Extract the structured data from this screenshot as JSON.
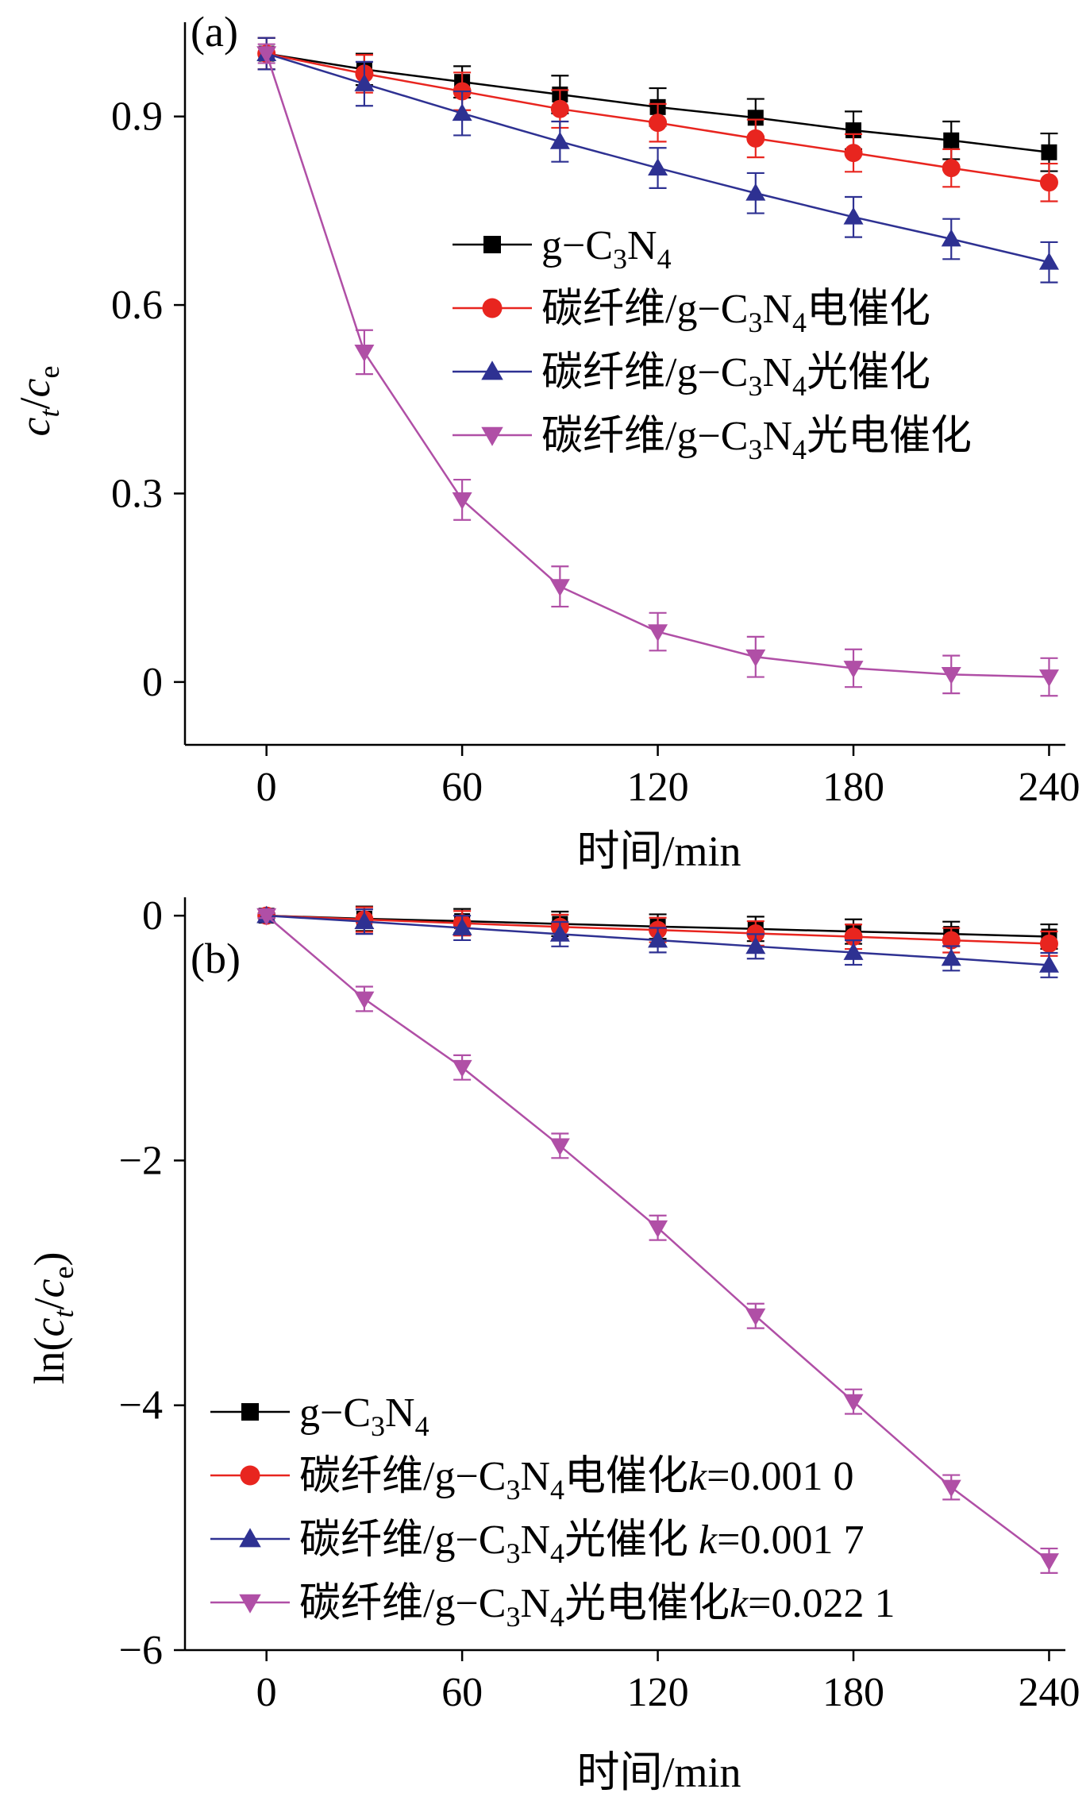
{
  "chart_data": [
    {
      "type": "line",
      "panel_label": "(a)",
      "xlabel": "时间/min",
      "ylabel": "c_t/c_e",
      "xlim": [
        -25,
        245
      ],
      "ylim": [
        -0.1,
        1.05
      ],
      "xticks": [
        0,
        60,
        120,
        180,
        240
      ],
      "xtick_labels": [
        "0",
        "60",
        "120",
        "180",
        "240"
      ],
      "yticks": [
        0,
        0.3,
        0.6,
        0.9
      ],
      "ytick_labels": [
        "0",
        "0.3",
        "0.6",
        "0.9"
      ],
      "grid": false,
      "legend_position": "center-right",
      "x": [
        0,
        30,
        60,
        90,
        120,
        150,
        180,
        210,
        240
      ],
      "series": [
        {
          "name": "g-C3N4",
          "color": "#000000",
          "marker": "square",
          "values": [
            1.0,
            0.975,
            0.955,
            0.935,
            0.915,
            0.898,
            0.878,
            0.862,
            0.843
          ],
          "errors": [
            0.025,
            0.025,
            0.025,
            0.03,
            0.03,
            0.03,
            0.03,
            0.03,
            0.03
          ]
        },
        {
          "name": "碳纤维/g-C3N4电催化",
          "color": "#e8251f",
          "marker": "circle",
          "values": [
            1.0,
            0.968,
            0.94,
            0.912,
            0.89,
            0.865,
            0.842,
            0.818,
            0.795
          ],
          "errors": [
            0.025,
            0.03,
            0.03,
            0.03,
            0.03,
            0.03,
            0.03,
            0.03,
            0.03
          ]
        },
        {
          "name": "碳纤维/g-C3N4光催化",
          "color": "#2e3192",
          "marker": "triangle-up",
          "values": [
            1.0,
            0.952,
            0.905,
            0.86,
            0.818,
            0.778,
            0.74,
            0.705,
            0.668
          ],
          "errors": [
            0.025,
            0.035,
            0.035,
            0.032,
            0.032,
            0.032,
            0.032,
            0.032,
            0.032
          ]
        },
        {
          "name": "碳纤维/g-C3N4光电催化",
          "color": "#b04fa6",
          "marker": "triangle-down",
          "values": [
            1.0,
            0.525,
            0.29,
            0.152,
            0.08,
            0.04,
            0.022,
            0.012,
            0.008
          ],
          "errors": [
            0.015,
            0.035,
            0.032,
            0.032,
            0.03,
            0.032,
            0.03,
            0.03,
            0.03
          ]
        }
      ]
    },
    {
      "type": "line",
      "panel_label": "(b)",
      "xlabel": "时间/min",
      "ylabel": "ln(c_t/c_e)",
      "xlim": [
        -25,
        245
      ],
      "ylim": [
        -6,
        0.15
      ],
      "xticks": [
        0,
        60,
        120,
        180,
        240
      ],
      "xtick_labels": [
        "0",
        "60",
        "120",
        "180",
        "240"
      ],
      "yticks": [
        0,
        -2,
        -4,
        -6
      ],
      "ytick_labels": [
        "0",
        "−2",
        "−4",
        "−6"
      ],
      "grid": false,
      "legend_position": "lower-left",
      "x": [
        0,
        30,
        60,
        90,
        120,
        150,
        180,
        210,
        240
      ],
      "series": [
        {
          "name": "g-C3N4",
          "color": "#000000",
          "marker": "square",
          "values": [
            0,
            -0.025,
            -0.045,
            -0.067,
            -0.089,
            -0.108,
            -0.13,
            -0.149,
            -0.171
          ],
          "errors": [
            0.02,
            0.1,
            0.1,
            0.1,
            0.1,
            0.1,
            0.1,
            0.1,
            0.1
          ]
        },
        {
          "name": "碳纤维/g-C3N4电催化",
          "color": "#e8251f",
          "marker": "circle",
          "values": [
            0,
            -0.032,
            -0.062,
            -0.092,
            -0.117,
            -0.145,
            -0.172,
            -0.201,
            -0.229
          ],
          "errors": [
            0.02,
            0.1,
            0.1,
            0.1,
            0.1,
            0.1,
            0.1,
            0.1,
            0.1
          ]
        },
        {
          "name": "碳纤维/g-C3N4光催化",
          "color": "#2e3192",
          "marker": "triangle-up",
          "values": [
            0,
            -0.049,
            -0.1,
            -0.151,
            -0.2,
            -0.251,
            -0.301,
            -0.349,
            -0.404
          ],
          "errors": [
            0.02,
            0.1,
            0.1,
            0.1,
            0.1,
            0.1,
            0.1,
            0.1,
            0.1
          ]
        },
        {
          "name": "碳纤维/g-C3N4光电催化",
          "color": "#b04fa6",
          "marker": "triangle-down",
          "values": [
            0,
            -0.68,
            -1.24,
            -1.88,
            -2.55,
            -3.27,
            -3.97,
            -4.67,
            -5.27
          ],
          "errors": [
            0.02,
            0.1,
            0.1,
            0.1,
            0.1,
            0.1,
            0.1,
            0.1,
            0.1
          ]
        }
      ]
    }
  ],
  "panel_a": {
    "label": "(a)",
    "ylabel_main": "c",
    "ylabel_sub1": "t",
    "ylabel_sep": "/c",
    "ylabel_sub2": "e",
    "xlabel": "时间/min",
    "legend": [
      {
        "prefix": "g−C",
        "sub1": "3",
        "mid": "N",
        "sub2": "4",
        "suffix": "",
        "k": ""
      },
      {
        "prefix": "碳纤维/g−C",
        "sub1": "3",
        "mid": "N",
        "sub2": "4",
        "suffix": "电催化",
        "k": ""
      },
      {
        "prefix": "碳纤维/g−C",
        "sub1": "3",
        "mid": "N",
        "sub2": "4",
        "suffix": "光催化",
        "k": ""
      },
      {
        "prefix": "碳纤维/g−C",
        "sub1": "3",
        "mid": "N",
        "sub2": "4",
        "suffix": "光电催化",
        "k": ""
      }
    ]
  },
  "panel_b": {
    "label": "(b)",
    "ylabel_pre": "ln(c",
    "ylabel_sub1": "t",
    "ylabel_sep": "/c",
    "ylabel_sub2": "e",
    "ylabel_post": ")",
    "xlabel": "时间/min",
    "legend": [
      {
        "prefix": "g−C",
        "sub1": "3",
        "mid": "N",
        "sub2": "4",
        "suffix": "",
        "k": ""
      },
      {
        "prefix": "碳纤维/g−C",
        "sub1": "3",
        "mid": "N",
        "sub2": "4",
        "suffix": "电催化",
        "k": "=0.001 0"
      },
      {
        "prefix": "碳纤维/g−C",
        "sub1": "3",
        "mid": "N",
        "sub2": "4",
        "suffix": "光催化 ",
        "k": "=0.001 7"
      },
      {
        "prefix": "碳纤维/g−C",
        "sub1": "3",
        "mid": "N",
        "sub2": "4",
        "suffix": "光电催化",
        "k": "=0.022 1"
      }
    ]
  }
}
